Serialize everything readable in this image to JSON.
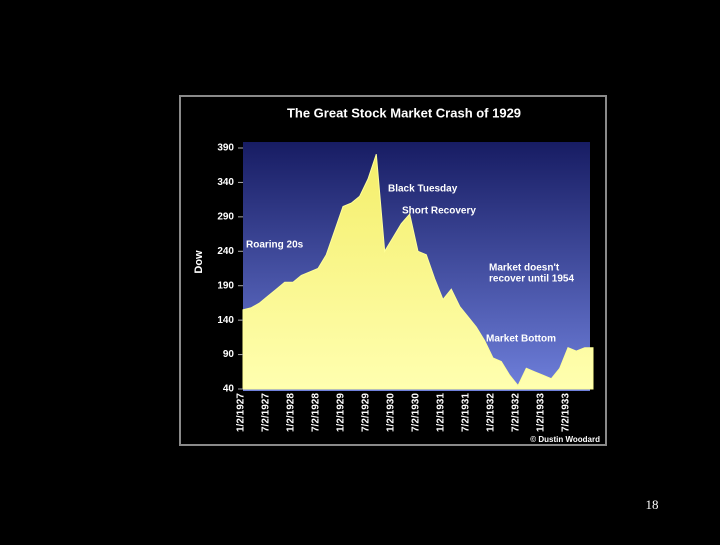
{
  "chart_data": {
    "type": "area",
    "title": "The Great Stock Market Crash of 1929",
    "ylabel": "Dow",
    "categories": [
      "1/2/1927",
      null,
      null,
      "7/2/1927",
      null,
      null,
      "1/2/1928",
      null,
      null,
      "7/2/1928",
      null,
      null,
      "1/2/1929",
      null,
      null,
      "7/2/1929",
      null,
      null,
      "1/2/1930",
      null,
      null,
      "7/2/1930",
      null,
      null,
      "1/2/1931",
      null,
      null,
      "7/2/1931",
      null,
      null,
      "1/2/1932",
      null,
      null,
      "7/2/1932",
      null,
      null,
      "1/2/1933",
      null,
      null,
      "7/2/1933",
      null,
      null,
      null
    ],
    "values": [
      155,
      158,
      165,
      175,
      185,
      195,
      195,
      205,
      210,
      215,
      235,
      270,
      305,
      310,
      320,
      345,
      381,
      240,
      260,
      280,
      294,
      240,
      235,
      200,
      170,
      185,
      160,
      145,
      130,
      110,
      85,
      80,
      60,
      45,
      70,
      65,
      60,
      55,
      70,
      100,
      95,
      100,
      100
    ],
    "color": "#ffff99",
    "ylim": [
      40,
      390
    ],
    "yticks": [
      40,
      90,
      140,
      190,
      240,
      290,
      340,
      390
    ],
    "annotations": [
      {
        "text": [
          "Black Tuesday"
        ]
      },
      {
        "text": [
          "Short Recovery"
        ]
      },
      {
        "text": [
          "Roaring 20s"
        ]
      },
      {
        "text": [
          "Market doesn't",
          "recover until 1954"
        ]
      },
      {
        "text": [
          "Market Bottom"
        ]
      }
    ],
    "credit": "© Dustin Woodard"
  },
  "page_number": "18"
}
